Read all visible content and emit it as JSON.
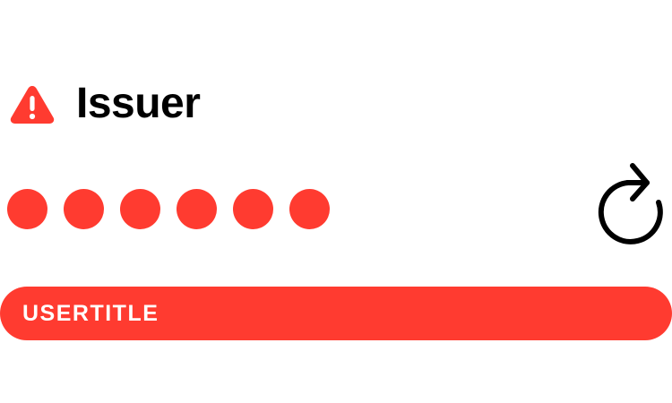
{
  "accent_color": "#ff3b30",
  "header": {
    "icon": "warning-triangle-icon",
    "title": "Issuer"
  },
  "code": {
    "digits_total": 6,
    "digits_masked": 6
  },
  "refresh": {
    "icon": "refresh-icon"
  },
  "user": {
    "title": "USERTITLE"
  }
}
